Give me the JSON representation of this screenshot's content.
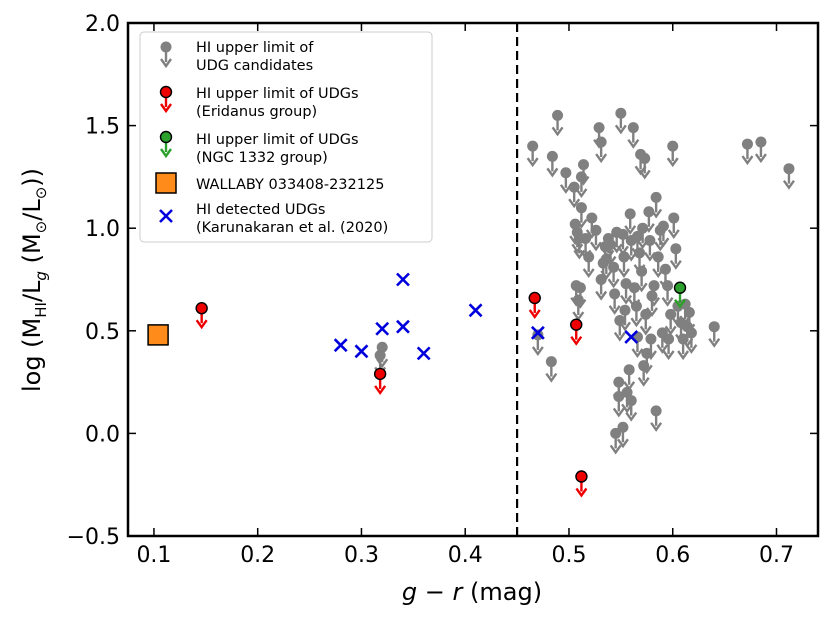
{
  "chart_data": {
    "type": "scatter",
    "xlabel": "g − r (mag)",
    "ylabel": "log (M_HI/L_g (M⊙/L⊙))",
    "xlim": [
      0.075,
      0.74
    ],
    "ylim": [
      -0.5,
      2.0
    ],
    "xticks": [
      0.1,
      0.2,
      0.3,
      0.4,
      0.5,
      0.6,
      0.7
    ],
    "yticks": [
      -0.5,
      0.0,
      0.5,
      1.0,
      1.5,
      2.0
    ],
    "xtick_labels": [
      "0.1",
      "0.2",
      "0.3",
      "0.4",
      "0.5",
      "0.6",
      "0.7"
    ],
    "ytick_labels": [
      "−0.5",
      "0.0",
      "0.5",
      "1.0",
      "1.5",
      "2.0"
    ],
    "vline": {
      "x": 0.45,
      "style": "dashed"
    },
    "legend_position": "upper-left",
    "colors": {
      "grey": "#808080",
      "red": "#ee0000",
      "green": "#2ca02c",
      "orange": "#ff8c1a",
      "blue": "#0000dd"
    },
    "series": [
      {
        "name": "HI upper limit of UDG candidates",
        "legend_lines": [
          "HI upper limit of",
          "UDG candidates"
        ],
        "marker": "circle-upper-limit",
        "color": "#808080",
        "points": [
          [
            0.32,
            0.42
          ],
          [
            0.318,
            0.38
          ],
          [
            0.465,
            1.4
          ],
          [
            0.484,
            1.35
          ],
          [
            0.489,
            1.55
          ],
          [
            0.497,
            1.27
          ],
          [
            0.505,
            1.2
          ],
          [
            0.506,
            1.02
          ],
          [
            0.508,
            0.98
          ],
          [
            0.51,
            0.95
          ],
          [
            0.512,
            1.1
          ],
          [
            0.507,
            0.72
          ],
          [
            0.511,
            0.71
          ],
          [
            0.509,
            0.65
          ],
          [
            0.483,
            0.35
          ],
          [
            0.47,
            0.48
          ],
          [
            0.514,
            1.31
          ],
          [
            0.516,
            0.95
          ],
          [
            0.519,
            0.86
          ],
          [
            0.522,
            1.05
          ],
          [
            0.526,
            0.99
          ],
          [
            0.529,
            1.49
          ],
          [
            0.531,
            1.42
          ],
          [
            0.533,
            0.83
          ],
          [
            0.536,
            0.85
          ],
          [
            0.538,
            0.95
          ],
          [
            0.54,
            0.92
          ],
          [
            0.543,
            0.81
          ],
          [
            0.544,
            0.68
          ],
          [
            0.546,
            0.98
          ],
          [
            0.548,
            0.18
          ],
          [
            0.55,
            1.56
          ],
          [
            0.552,
            0.97
          ],
          [
            0.553,
            0.86
          ],
          [
            0.555,
            0.73
          ],
          [
            0.558,
            0.31
          ],
          [
            0.559,
            1.07
          ],
          [
            0.56,
            0.94
          ],
          [
            0.562,
            1.49
          ],
          [
            0.563,
            0.71
          ],
          [
            0.565,
            0.62
          ],
          [
            0.566,
            0.96
          ],
          [
            0.568,
            0.88
          ],
          [
            0.57,
            0.79
          ],
          [
            0.571,
            1.0
          ],
          [
            0.573,
            1.34
          ],
          [
            0.574,
            0.58
          ],
          [
            0.575,
            0.39
          ],
          [
            0.577,
            1.08
          ],
          [
            0.578,
            0.94
          ],
          [
            0.58,
            0.67
          ],
          [
            0.582,
            0.72
          ],
          [
            0.584,
            1.15
          ],
          [
            0.586,
            0.86
          ],
          [
            0.588,
            0.99
          ],
          [
            0.59,
            0.49
          ],
          [
            0.591,
            1.01
          ],
          [
            0.593,
            0.8
          ],
          [
            0.595,
            0.72
          ],
          [
            0.596,
            0.46
          ],
          [
            0.598,
            0.58
          ],
          [
            0.6,
            1.4
          ],
          [
            0.601,
            1.05
          ],
          [
            0.603,
            0.9
          ],
          [
            0.605,
            0.62
          ],
          [
            0.608,
            0.54
          ],
          [
            0.61,
            0.46
          ],
          [
            0.612,
            0.63
          ],
          [
            0.614,
            0.52
          ],
          [
            0.616,
            0.59
          ],
          [
            0.618,
            0.49
          ],
          [
            0.64,
            0.52
          ],
          [
            0.672,
            1.41
          ],
          [
            0.685,
            1.42
          ],
          [
            0.712,
            1.29
          ],
          [
            0.548,
            0.25
          ],
          [
            0.552,
            0.03
          ],
          [
            0.556,
            0.2
          ],
          [
            0.56,
            0.16
          ],
          [
            0.566,
            0.47
          ],
          [
            0.572,
            0.33
          ],
          [
            0.579,
            0.46
          ],
          [
            0.584,
            0.11
          ],
          [
            0.554,
            0.6
          ],
          [
            0.549,
            0.55
          ],
          [
            0.545,
            0.0
          ],
          [
            0.569,
            1.36
          ],
          [
            0.531,
            0.75
          ],
          [
            0.535,
            0.91
          ],
          [
            0.512,
            1.25
          ]
        ]
      },
      {
        "name": "HI upper limit of UDGs (Eridanus group)",
        "legend_lines": [
          "HI upper limit of UDGs",
          "(Eridanus group)"
        ],
        "marker": "circle-upper-limit",
        "color": "#ee0000",
        "points": [
          [
            0.146,
            0.61
          ],
          [
            0.318,
            0.29
          ],
          [
            0.467,
            0.66
          ],
          [
            0.507,
            0.53
          ],
          [
            0.512,
            -0.21
          ]
        ]
      },
      {
        "name": "HI upper limit of UDGs (NGC 1332 group)",
        "legend_lines": [
          "HI upper limit of UDGs",
          "(NGC 1332 group)"
        ],
        "marker": "circle-upper-limit",
        "color": "#2ca02c",
        "points": [
          [
            0.607,
            0.71
          ]
        ]
      },
      {
        "name": "WALLABY 033408-232125",
        "legend_lines": [
          "WALLABY 033408-232125"
        ],
        "marker": "square",
        "color": "#ff8c1a",
        "points": [
          [
            0.104,
            0.48
          ]
        ]
      },
      {
        "name": "HI detected UDGs (Karunakaran et al. (2020)",
        "legend_lines": [
          "HI detected UDGs",
          "(Karunakaran et al. (2020)"
        ],
        "marker": "x",
        "color": "#0000dd",
        "points": [
          [
            0.28,
            0.43
          ],
          [
            0.3,
            0.4
          ],
          [
            0.32,
            0.51
          ],
          [
            0.34,
            0.75
          ],
          [
            0.34,
            0.52
          ],
          [
            0.36,
            0.39
          ],
          [
            0.41,
            0.6
          ],
          [
            0.47,
            0.49
          ],
          [
            0.56,
            0.47
          ]
        ]
      }
    ]
  }
}
